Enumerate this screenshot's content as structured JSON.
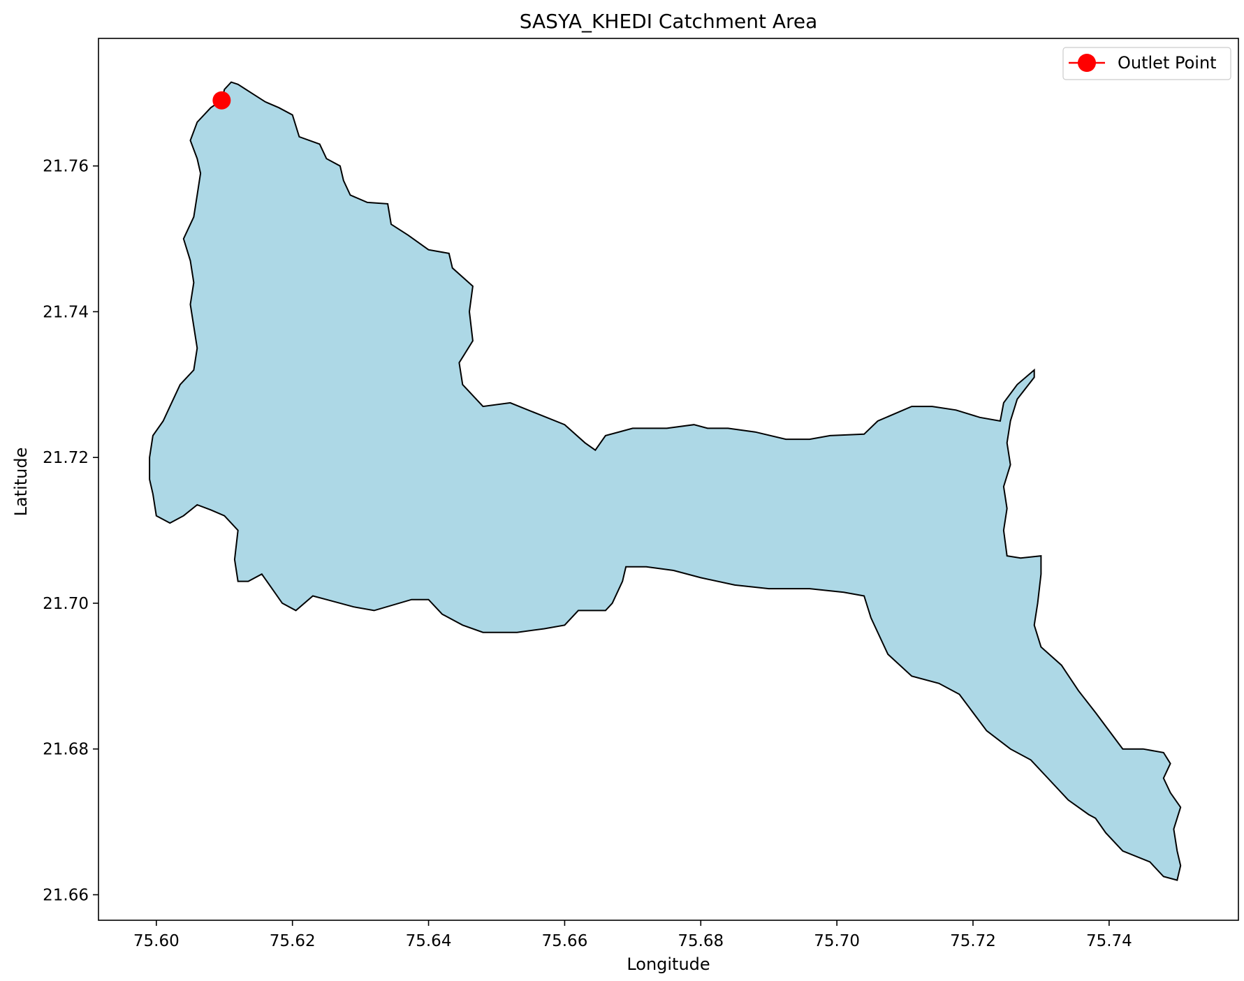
{
  "chart_data": {
    "type": "map",
    "title": "SASYA_KHEDI Catchment Area",
    "xlabel": "Longitude",
    "ylabel": "Latitude",
    "xlim": [
      75.5915,
      75.759
    ],
    "ylim": [
      21.6565,
      21.7775
    ],
    "xticks": [
      75.6,
      75.62,
      75.64,
      75.66,
      75.68,
      75.7,
      75.72,
      75.74
    ],
    "xtick_labels": [
      "75.60",
      "75.62",
      "75.64",
      "75.66",
      "75.68",
      "75.70",
      "75.72",
      "75.74"
    ],
    "yticks": [
      21.66,
      21.68,
      21.7,
      21.72,
      21.74,
      21.76
    ],
    "ytick_labels": [
      "21.66",
      "21.68",
      "21.70",
      "21.72",
      "21.74",
      "21.76"
    ],
    "grid": false,
    "legend": {
      "position": "top-right",
      "entries": [
        "Outlet Point"
      ]
    },
    "outlet_point": {
      "name": "Outlet Point",
      "lon": 75.6096,
      "lat": 21.769,
      "color": "#ff0000"
    },
    "catchment": {
      "fill": "#add8e6",
      "stroke": "#000000",
      "boundary": [
        [
          75.6096,
          21.769
        ],
        [
          75.61,
          21.7705
        ],
        [
          75.611,
          21.7715
        ],
        [
          75.612,
          21.7712
        ],
        [
          75.614,
          21.77
        ],
        [
          75.616,
          21.7688
        ],
        [
          75.618,
          21.768
        ],
        [
          75.62,
          21.767
        ],
        [
          75.621,
          21.764
        ],
        [
          75.624,
          21.763
        ],
        [
          75.625,
          21.761
        ],
        [
          75.627,
          21.76
        ],
        [
          75.6275,
          21.758
        ],
        [
          75.6285,
          21.756
        ],
        [
          75.631,
          21.755
        ],
        [
          75.634,
          21.7548
        ],
        [
          75.6345,
          21.752
        ],
        [
          75.637,
          21.7505
        ],
        [
          75.64,
          21.7485
        ],
        [
          75.643,
          21.748
        ],
        [
          75.6435,
          21.746
        ],
        [
          75.6465,
          21.7435
        ],
        [
          75.646,
          21.74
        ],
        [
          75.6465,
          21.736
        ],
        [
          75.6445,
          21.733
        ],
        [
          75.645,
          21.73
        ],
        [
          75.648,
          21.727
        ],
        [
          75.652,
          21.7275
        ],
        [
          75.656,
          21.726
        ],
        [
          75.66,
          21.7245
        ],
        [
          75.663,
          21.722
        ],
        [
          75.6645,
          21.721
        ],
        [
          75.666,
          21.723
        ],
        [
          75.67,
          21.724
        ],
        [
          75.675,
          21.724
        ],
        [
          75.679,
          21.7245
        ],
        [
          75.681,
          21.724
        ],
        [
          75.684,
          21.724
        ],
        [
          75.688,
          21.7235
        ],
        [
          75.6925,
          21.7225
        ],
        [
          75.696,
          21.7225
        ],
        [
          75.699,
          21.723
        ],
        [
          75.704,
          21.7232
        ],
        [
          75.706,
          21.725
        ],
        [
          75.711,
          21.727
        ],
        [
          75.714,
          21.727
        ],
        [
          75.7175,
          21.7265
        ],
        [
          75.721,
          21.7255
        ],
        [
          75.724,
          21.725
        ],
        [
          75.7245,
          21.7275
        ],
        [
          75.7265,
          21.73
        ],
        [
          75.729,
          21.732
        ],
        [
          75.729,
          21.731
        ],
        [
          75.7265,
          21.728
        ],
        [
          75.7255,
          21.725
        ],
        [
          75.725,
          21.722
        ],
        [
          75.7255,
          21.719
        ],
        [
          75.7245,
          21.716
        ],
        [
          75.725,
          21.713
        ],
        [
          75.7245,
          21.71
        ],
        [
          75.725,
          21.7065
        ],
        [
          75.727,
          21.7062
        ],
        [
          75.73,
          21.7065
        ],
        [
          75.73,
          21.704
        ],
        [
          75.7295,
          21.7
        ],
        [
          75.729,
          21.697
        ],
        [
          75.73,
          21.694
        ],
        [
          75.733,
          21.6915
        ],
        [
          75.7355,
          21.688
        ],
        [
          75.738,
          21.685
        ],
        [
          75.74,
          21.6825
        ],
        [
          75.742,
          21.68
        ],
        [
          75.745,
          21.68
        ],
        [
          75.748,
          21.6795
        ],
        [
          75.749,
          21.678
        ],
        [
          75.748,
          21.676
        ],
        [
          75.749,
          21.674
        ],
        [
          75.7505,
          21.672
        ],
        [
          75.7495,
          21.669
        ],
        [
          75.75,
          21.666
        ],
        [
          75.7505,
          21.664
        ],
        [
          75.75,
          21.662
        ],
        [
          75.748,
          21.6625
        ],
        [
          75.746,
          21.6645
        ],
        [
          75.742,
          21.666
        ],
        [
          75.7395,
          21.6685
        ],
        [
          75.738,
          21.6705
        ],
        [
          75.737,
          21.671
        ],
        [
          75.734,
          21.673
        ],
        [
          75.731,
          21.676
        ],
        [
          75.7285,
          21.6785
        ],
        [
          75.7255,
          21.68
        ],
        [
          75.722,
          21.6825
        ],
        [
          75.72,
          21.685
        ],
        [
          75.718,
          21.6875
        ],
        [
          75.715,
          21.689
        ],
        [
          75.711,
          21.69
        ],
        [
          75.7075,
          21.693
        ],
        [
          75.705,
          21.698
        ],
        [
          75.704,
          21.701
        ],
        [
          75.701,
          21.7015
        ],
        [
          75.696,
          21.702
        ],
        [
          75.69,
          21.702
        ],
        [
          75.685,
          21.7025
        ],
        [
          75.68,
          21.7035
        ],
        [
          75.676,
          21.7045
        ],
        [
          75.672,
          21.705
        ],
        [
          75.669,
          21.705
        ],
        [
          75.6685,
          21.703
        ],
        [
          75.667,
          21.7
        ],
        [
          75.666,
          21.699
        ],
        [
          75.662,
          21.699
        ],
        [
          75.66,
          21.697
        ],
        [
          75.657,
          21.6965
        ],
        [
          75.653,
          21.696
        ],
        [
          75.648,
          21.696
        ],
        [
          75.645,
          21.697
        ],
        [
          75.642,
          21.6985
        ],
        [
          75.64,
          21.7005
        ],
        [
          75.6375,
          21.7005
        ],
        [
          75.632,
          21.699
        ],
        [
          75.629,
          21.6995
        ],
        [
          75.625,
          21.7005
        ],
        [
          75.623,
          21.701
        ],
        [
          75.6205,
          21.699
        ],
        [
          75.6185,
          21.7
        ],
        [
          75.617,
          21.702
        ],
        [
          75.6155,
          21.704
        ],
        [
          75.6135,
          21.703
        ],
        [
          75.612,
          21.703
        ],
        [
          75.6115,
          21.706
        ],
        [
          75.612,
          21.71
        ],
        [
          75.61,
          21.712
        ],
        [
          75.608,
          21.7128
        ],
        [
          75.606,
          21.7135
        ],
        [
          75.604,
          21.712
        ],
        [
          75.602,
          21.711
        ],
        [
          75.6,
          21.712
        ],
        [
          75.5995,
          21.715
        ],
        [
          75.599,
          21.717
        ],
        [
          75.599,
          21.72
        ],
        [
          75.5995,
          21.723
        ],
        [
          75.601,
          21.725
        ],
        [
          75.602,
          21.727
        ],
        [
          75.6035,
          21.73
        ],
        [
          75.6055,
          21.732
        ],
        [
          75.606,
          21.735
        ],
        [
          75.6055,
          21.738
        ],
        [
          75.605,
          21.741
        ],
        [
          75.6055,
          21.744
        ],
        [
          75.605,
          21.747
        ],
        [
          75.604,
          21.75
        ],
        [
          75.6055,
          21.753
        ],
        [
          75.606,
          21.756
        ],
        [
          75.6065,
          21.759
        ],
        [
          75.606,
          21.761
        ],
        [
          75.605,
          21.7635
        ],
        [
          75.606,
          21.766
        ],
        [
          75.608,
          21.768
        ],
        [
          75.6096,
          21.769
        ]
      ]
    }
  }
}
